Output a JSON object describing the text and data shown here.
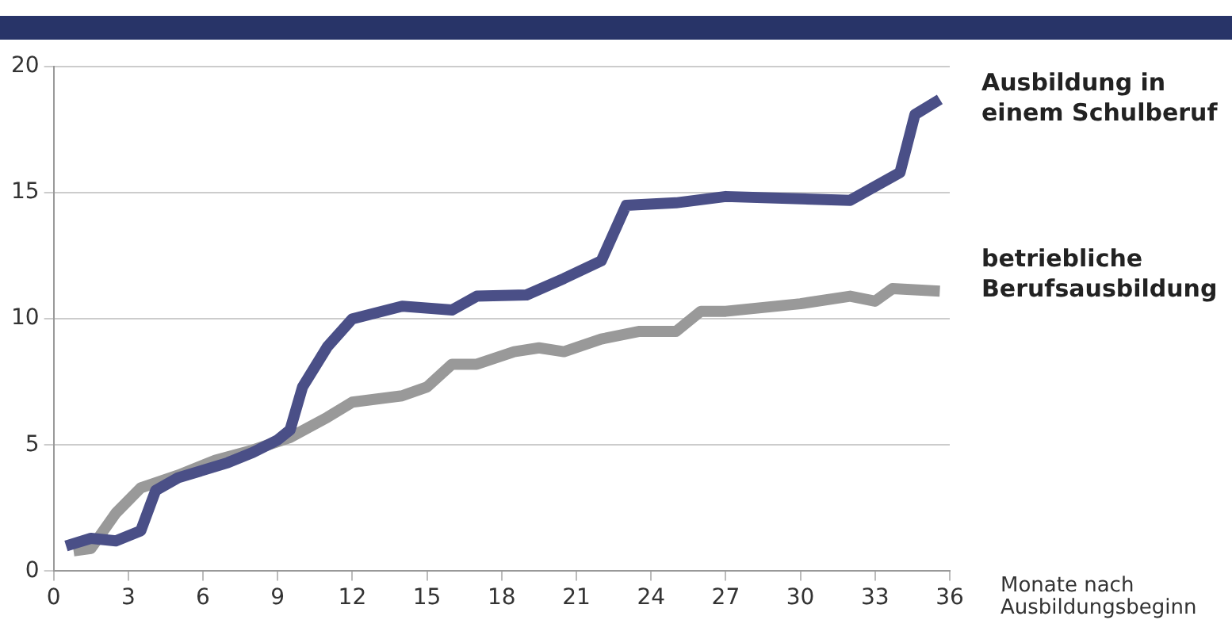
{
  "chart_data": {
    "type": "line",
    "xlabel": "Monate nach Ausbildungsbeginn",
    "xlim": [
      0,
      36
    ],
    "xticks": [
      0,
      3,
      6,
      9,
      12,
      15,
      18,
      21,
      24,
      27,
      30,
      33,
      36
    ],
    "ylim": [
      0,
      20
    ],
    "yticks": [
      0,
      5,
      10,
      15,
      20
    ],
    "grid": "y",
    "legend": false,
    "marker": "none",
    "line_style": "solid",
    "series": [
      {
        "name": "Ausbildung in einem Schulberuf",
        "color": "#4a4f87",
        "x": [
          0.5,
          1.5,
          2.5,
          3.5,
          4.1,
          5,
          6,
          7,
          8,
          9,
          9.5,
          10,
          11,
          12,
          14,
          16,
          17,
          19,
          20.5,
          22,
          23,
          25,
          27,
          32,
          34,
          34.6,
          35.6
        ],
        "values": [
          1.0,
          1.3,
          1.2,
          1.6,
          3.2,
          3.7,
          4.0,
          4.3,
          4.7,
          5.2,
          5.6,
          7.3,
          8.9,
          10.0,
          10.5,
          10.35,
          10.9,
          10.95,
          11.6,
          12.3,
          14.5,
          14.6,
          14.85,
          14.7,
          15.8,
          18.1,
          18.7
        ]
      },
      {
        "name": "betriebliche Berufsausbildung",
        "color": "#999999",
        "x": [
          0.8,
          1.5,
          2.5,
          3.5,
          5,
          6.5,
          8,
          9.5,
          11,
          12,
          14,
          15,
          16,
          17,
          18.5,
          19.5,
          20.5,
          22,
          23.5,
          25,
          26,
          27,
          30,
          32,
          33,
          33.7,
          35.6
        ],
        "values": [
          0.8,
          0.9,
          2.3,
          3.3,
          3.8,
          4.4,
          4.8,
          5.3,
          6.1,
          6.7,
          6.95,
          7.3,
          8.2,
          8.2,
          8.7,
          8.85,
          8.7,
          9.2,
          9.5,
          9.5,
          10.3,
          10.3,
          10.6,
          10.9,
          10.7,
          11.2,
          11.1
        ]
      }
    ]
  }
}
